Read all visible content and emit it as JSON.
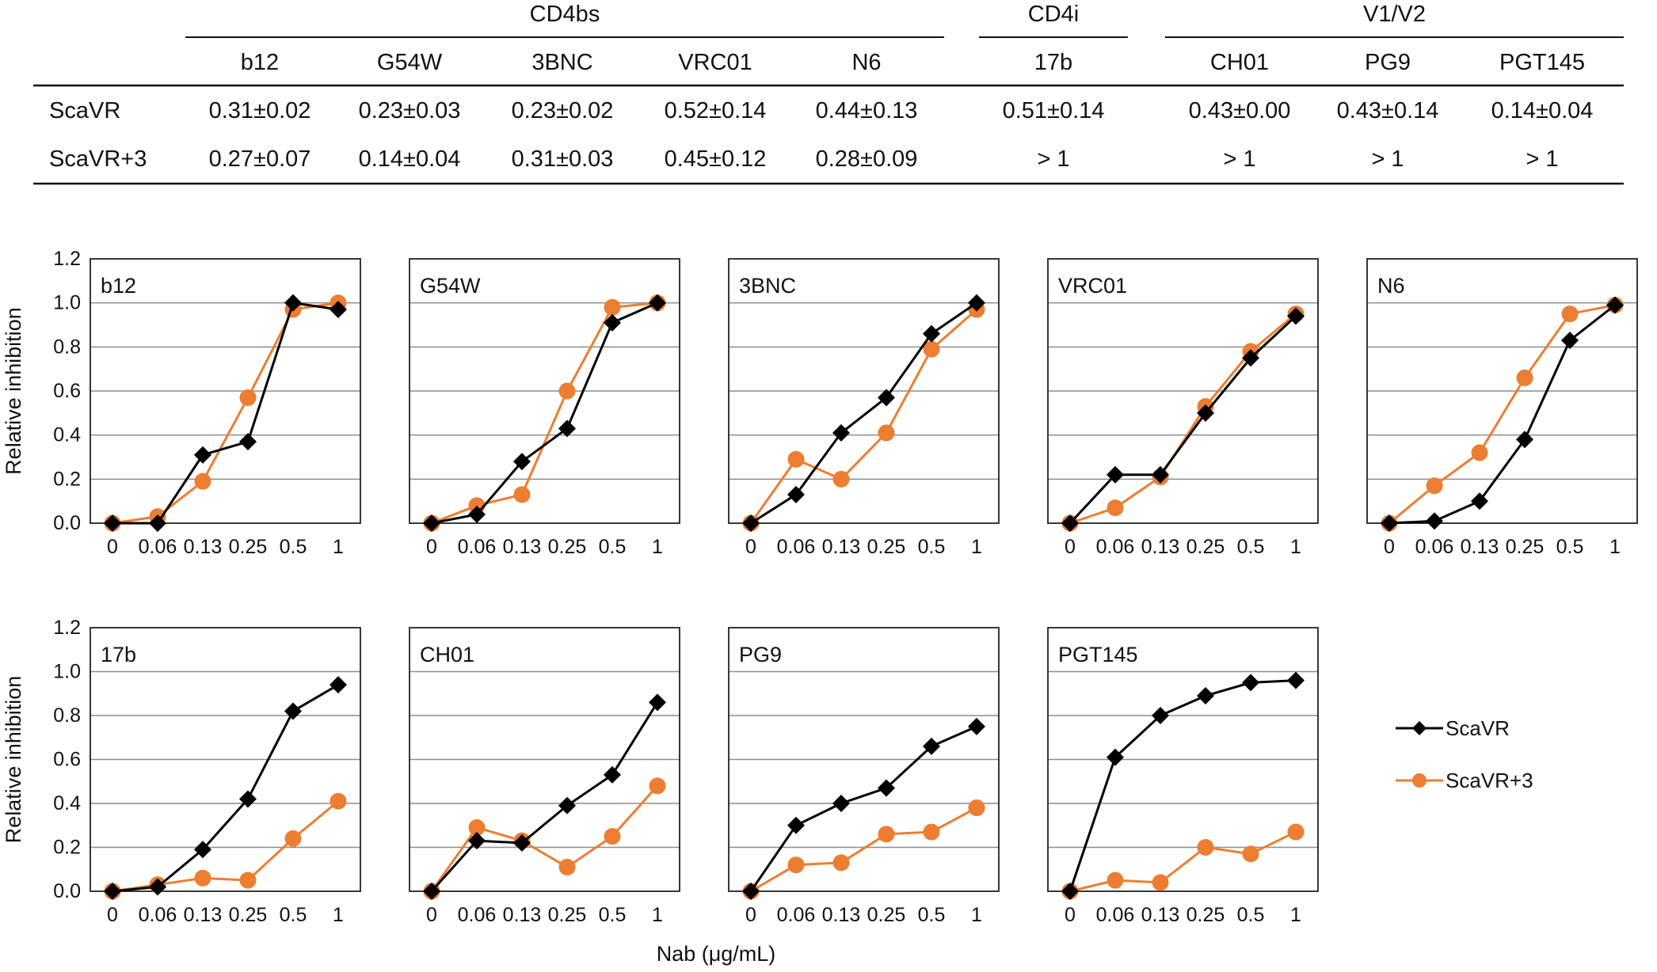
{
  "table": {
    "groups": [
      {
        "label": "CD4bs",
        "col_start": 0,
        "col_end": 4
      },
      {
        "label": "CD4i",
        "col_start": 5,
        "col_end": 5
      },
      {
        "label": "V1/V2",
        "col_start": 6,
        "col_end": 8
      }
    ],
    "columns": [
      "b12",
      "G54W",
      "3BNC",
      "VRC01",
      "N6",
      "17b",
      "CH01",
      "PG9",
      "PGT145"
    ],
    "rows": [
      {
        "label": "ScaVR",
        "cells": [
          "0.31±0.02",
          "0.23±0.03",
          "0.23±0.02",
          "0.52±0.14",
          "0.44±0.13",
          "0.51±0.14",
          "0.43±0.00",
          "0.43±0.14",
          "0.14±0.04"
        ]
      },
      {
        "label": "ScaVR+3",
        "cells": [
          "0.27±0.07",
          "0.14±0.04",
          "0.31±0.03",
          "0.45±0.12",
          "0.28±0.09",
          "> 1",
          "> 1",
          "> 1",
          "> 1"
        ]
      }
    ]
  },
  "chart_data": {
    "type": "line",
    "ylabel": "Relative inhibition",
    "xlabel": "Nab (μg/mL)",
    "ylim": [
      0,
      1.2
    ],
    "yticks": [
      "0.0",
      "0.2",
      "0.4",
      "0.6",
      "0.8",
      "1.0",
      "1.2"
    ],
    "categories": [
      "0",
      "0.06",
      "0.13",
      "0.25",
      "0.5",
      "1"
    ],
    "grid": "horizontal",
    "legend": [
      {
        "name": "ScaVR",
        "color": "#000000",
        "marker": "diamond"
      },
      {
        "name": "ScaVR+3",
        "color": "#ED7D31",
        "marker": "circle"
      }
    ],
    "panels": [
      {
        "title": "b12",
        "series": [
          {
            "name": "ScaVR",
            "values": [
              0.0,
              0.0,
              0.31,
              0.37,
              1.0,
              0.97
            ]
          },
          {
            "name": "ScaVR+3",
            "values": [
              0.0,
              0.03,
              0.19,
              0.57,
              0.97,
              1.0
            ]
          }
        ]
      },
      {
        "title": "G54W",
        "series": [
          {
            "name": "ScaVR",
            "values": [
              0.0,
              0.04,
              0.28,
              0.43,
              0.91,
              1.0
            ]
          },
          {
            "name": "ScaVR+3",
            "values": [
              0.0,
              0.08,
              0.13,
              0.6,
              0.98,
              1.0
            ]
          }
        ]
      },
      {
        "title": "3BNC",
        "series": [
          {
            "name": "ScaVR",
            "values": [
              0.0,
              0.13,
              0.41,
              0.57,
              0.86,
              1.0
            ]
          },
          {
            "name": "ScaVR+3",
            "values": [
              0.0,
              0.29,
              0.2,
              0.41,
              0.79,
              0.97
            ]
          }
        ]
      },
      {
        "title": "VRC01",
        "series": [
          {
            "name": "ScaVR",
            "values": [
              0.0,
              0.22,
              0.22,
              0.5,
              0.75,
              0.94
            ]
          },
          {
            "name": "ScaVR+3",
            "values": [
              0.0,
              0.07,
              0.21,
              0.53,
              0.78,
              0.95
            ]
          }
        ]
      },
      {
        "title": "N6",
        "series": [
          {
            "name": "ScaVR",
            "values": [
              0.0,
              0.01,
              0.1,
              0.38,
              0.83,
              0.99
            ]
          },
          {
            "name": "ScaVR+3",
            "values": [
              0.0,
              0.17,
              0.32,
              0.66,
              0.95,
              0.99
            ]
          }
        ]
      },
      {
        "title": "17b",
        "series": [
          {
            "name": "ScaVR",
            "values": [
              0.0,
              0.02,
              0.19,
              0.42,
              0.82,
              0.94
            ]
          },
          {
            "name": "ScaVR+3",
            "values": [
              0.0,
              0.03,
              0.06,
              0.05,
              0.24,
              0.41
            ]
          }
        ]
      },
      {
        "title": "CH01",
        "series": [
          {
            "name": "ScaVR",
            "values": [
              0.0,
              0.23,
              0.22,
              0.39,
              0.53,
              0.86
            ]
          },
          {
            "name": "ScaVR+3",
            "values": [
              0.0,
              0.29,
              0.23,
              0.11,
              0.25,
              0.48
            ]
          }
        ]
      },
      {
        "title": "PG9",
        "series": [
          {
            "name": "ScaVR",
            "values": [
              0.0,
              0.3,
              0.4,
              0.47,
              0.66,
              0.75
            ]
          },
          {
            "name": "ScaVR+3",
            "values": [
              0.0,
              0.12,
              0.13,
              0.26,
              0.27,
              0.38
            ]
          }
        ]
      },
      {
        "title": "PGT145",
        "series": [
          {
            "name": "ScaVR",
            "values": [
              0.0,
              0.61,
              0.8,
              0.89,
              0.95,
              0.96
            ]
          },
          {
            "name": "ScaVR+3",
            "values": [
              0.0,
              0.05,
              0.04,
              0.2,
              0.17,
              0.27
            ]
          }
        ]
      }
    ]
  }
}
